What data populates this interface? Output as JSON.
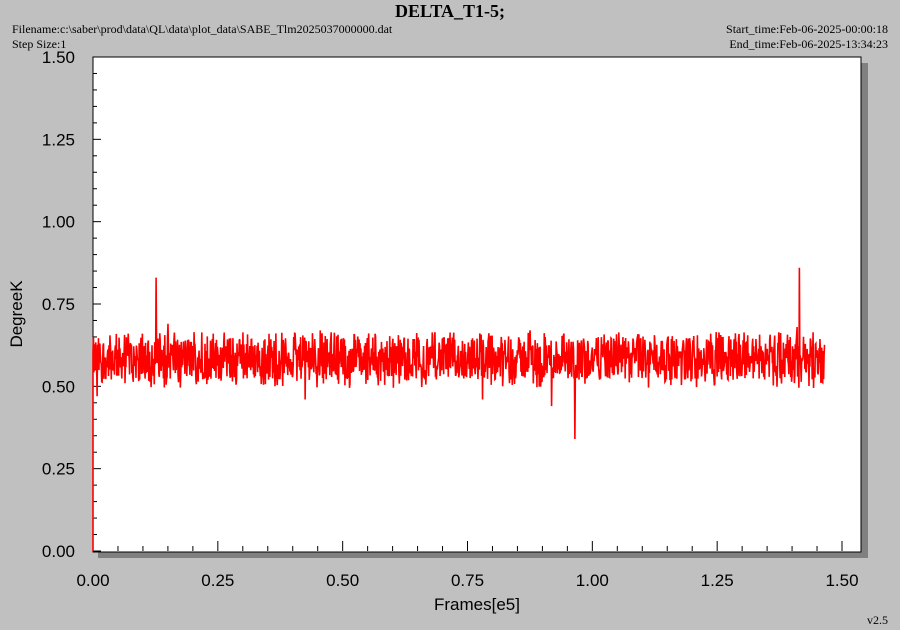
{
  "header": {
    "title": "DELTA_T1-5;",
    "filename": "Filename:c:\\saber\\prod\\data\\QL\\data\\plot_data\\SABE_Tlm2025037000000.dat",
    "step_size": "Step Size:1",
    "start_time": "Start_time:Feb-06-2025-00:00:18",
    "end_time": "End_time:Feb-06-2025-13:34:23",
    "version": "v2.5"
  },
  "colors": {
    "background": "#c0c0c0",
    "plot_area": "#ffffff",
    "series": "#ff0000"
  },
  "chart_data": {
    "type": "line",
    "xlabel": "Frames[e5]",
    "ylabel": "DegreeK",
    "xlim": [
      0,
      1.5
    ],
    "ylim": [
      0,
      1.5
    ],
    "x_ticks": [
      "0.00",
      "0.25",
      "0.50",
      "0.75",
      "1.00",
      "1.25",
      "1.50"
    ],
    "y_ticks": [
      "0.00",
      "0.25",
      "0.50",
      "0.75",
      "1.00",
      "1.25",
      "1.50"
    ],
    "grid": false,
    "legend": "none",
    "series": [
      {
        "x_range": [
          0,
          1.465
        ],
        "typical_band": [
          0.52,
          0.65
        ],
        "spikes": [
          {
            "x": 0.0,
            "y": 0.0
          },
          {
            "x": 0.008,
            "y": 0.47
          },
          {
            "x": 0.126,
            "y": 0.83
          },
          {
            "x": 0.15,
            "y": 0.69
          },
          {
            "x": 0.425,
            "y": 0.46
          },
          {
            "x": 0.455,
            "y": 0.67
          },
          {
            "x": 0.78,
            "y": 0.46
          },
          {
            "x": 0.875,
            "y": 0.48
          },
          {
            "x": 0.875,
            "y": 0.67
          },
          {
            "x": 0.918,
            "y": 0.44
          },
          {
            "x": 0.965,
            "y": 0.34
          },
          {
            "x": 1.415,
            "y": 0.86
          },
          {
            "x": 1.41,
            "y": 0.68
          }
        ]
      }
    ]
  }
}
